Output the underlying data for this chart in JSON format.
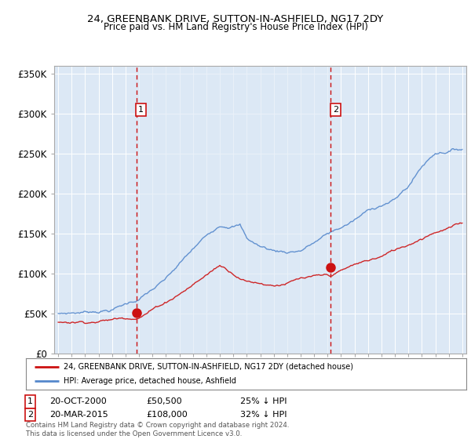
{
  "title": "24, GREENBANK DRIVE, SUTTON-IN-ASHFIELD, NG17 2DY",
  "subtitle": "Price paid vs. HM Land Registry's House Price Index (HPI)",
  "legend_line1": "24, GREENBANK DRIVE, SUTTON-IN-ASHFIELD, NG17 2DY (detached house)",
  "legend_line2": "HPI: Average price, detached house, Ashfield",
  "sale1_label": "1",
  "sale1_date": "20-OCT-2000",
  "sale1_price": "£50,500",
  "sale1_pct": "25% ↓ HPI",
  "sale1_year": 2000.8,
  "sale1_value": 50500,
  "sale2_label": "2",
  "sale2_date": "20-MAR-2015",
  "sale2_price": "£108,000",
  "sale2_pct": "32% ↓ HPI",
  "sale2_year": 2015.22,
  "sale2_value": 108000,
  "ylim": [
    0,
    360000
  ],
  "xlim": [
    1994.7,
    2025.3
  ],
  "yticks": [
    0,
    50000,
    100000,
    150000,
    200000,
    250000,
    300000,
    350000
  ],
  "ytick_labels": [
    "£0",
    "£50K",
    "£100K",
    "£150K",
    "£200K",
    "£250K",
    "£300K",
    "£350K"
  ],
  "background_color": "#dce8f5",
  "highlight_color": "#c8daf0",
  "hpi_color": "#5588cc",
  "price_color": "#cc1111",
  "dashed_color": "#cc1111",
  "footer": "Contains HM Land Registry data © Crown copyright and database right 2024.\nThis data is licensed under the Open Government Licence v3.0."
}
